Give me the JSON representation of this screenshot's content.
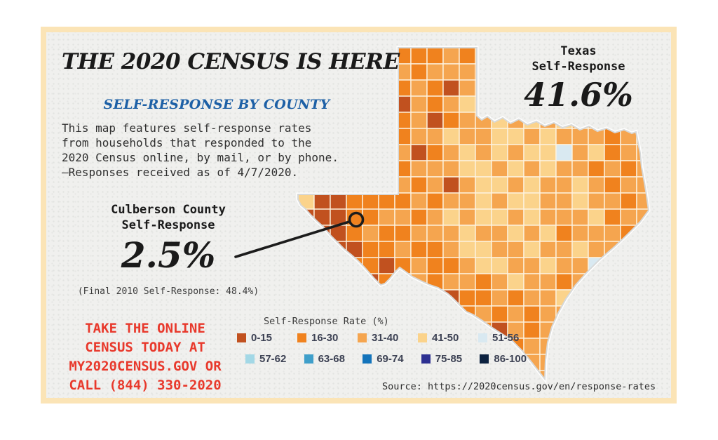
{
  "card": {
    "border_color": "#fbe4b6",
    "background": "#f0f0ee"
  },
  "header": {
    "title": "THE 2020 CENSUS IS HERE",
    "subtitle": "SELF-RESPONSE BY COUNTY"
  },
  "intro": {
    "lines": [
      "This map features self-response rates",
      "from households that responded to the",
      "2020 Census online, by mail, or by phone.",
      "—Responses received as of 4/7/2020."
    ]
  },
  "texas_stat": {
    "label_lines": [
      "Texas",
      "Self-Response"
    ],
    "value": "41.6%"
  },
  "county_callout": {
    "label_lines": [
      "Culberson County",
      "Self-Response"
    ],
    "value": "2.5%",
    "footnote": "(Final 2010 Self-Response: 48.4%)"
  },
  "cta": {
    "color": "#e8392c",
    "lines": [
      "TAKE THE ONLINE",
      "CENSUS TODAY AT",
      "MY2020CENSUS.GOV OR",
      "CALL (844) 330-2020"
    ]
  },
  "legend": {
    "title": "Self-Response Rate (%)",
    "bins": [
      {
        "label": "0-15",
        "color": "#c1511f"
      },
      {
        "label": "16-30",
        "color": "#f0821e"
      },
      {
        "label": "31-40",
        "color": "#f5a54f"
      },
      {
        "label": "41-50",
        "color": "#fbd38b"
      },
      {
        "label": "51-56",
        "color": "#d9e9f1"
      },
      {
        "label": "57-62",
        "color": "#a3d8e6"
      },
      {
        "label": "63-68",
        "color": "#3f9fca"
      },
      {
        "label": "69-74",
        "color": "#1474bb"
      },
      {
        "label": "75-85",
        "color": "#2e3192"
      },
      {
        "label": "86-100",
        "color": "#0d2240"
      }
    ]
  },
  "source": "Source: https://2020census.gov/en/response-rates",
  "chart_data": {
    "type": "choropleth",
    "region": "Texas counties",
    "metric": "2020 Census self-response rate (%)",
    "as_of": "4/7/2020",
    "state_value_pct": 41.6,
    "highlight": {
      "county": "Culberson County",
      "value_pct": 2.5,
      "final_2010_pct": 48.4
    },
    "bins": [
      {
        "label": "0-15",
        "color": "#c1511f"
      },
      {
        "label": "16-30",
        "color": "#f0821e"
      },
      {
        "label": "31-40",
        "color": "#f5a54f"
      },
      {
        "label": "41-50",
        "color": "#fbd38b"
      },
      {
        "label": "51-56",
        "color": "#d9e9f1"
      },
      {
        "label": "57-62",
        "color": "#a3d8e6"
      },
      {
        "label": "63-68",
        "color": "#3f9fca"
      },
      {
        "label": "69-74",
        "color": "#1474bb"
      },
      {
        "label": "75-85",
        "color": "#2e3192"
      },
      {
        "label": "86-100",
        "color": "#0d2240"
      }
    ],
    "county_line_color": "#fdf3e0",
    "outline_color": "#d7d9d9",
    "map_mosaic": {
      "cell": 23,
      "cols": 22,
      "rows": [
        "2222221112122222222222",
        "2222222122212222222222",
        "2222221210222222222222",
        "2222220212322222222222",
        "2222221201223232322222",
        "2222221223223323222122",
        "2222222012323233423122",
        "2222221222332323221212",
        "2222222120233232232122",
        "3001111212232332232212",
        "0001122123233232223122",
        "1001211222322323122212",
        "2100112112332232232212",
        "1101101211233223224222",
        "2101011212212322122222",
        "2211011120112122321222",
        "2221101101121212212222",
        "2222211010110212122222",
        "2222221101012122222222",
        "2222222110101122222222",
        "2222222211011222222222"
      ]
    }
  }
}
